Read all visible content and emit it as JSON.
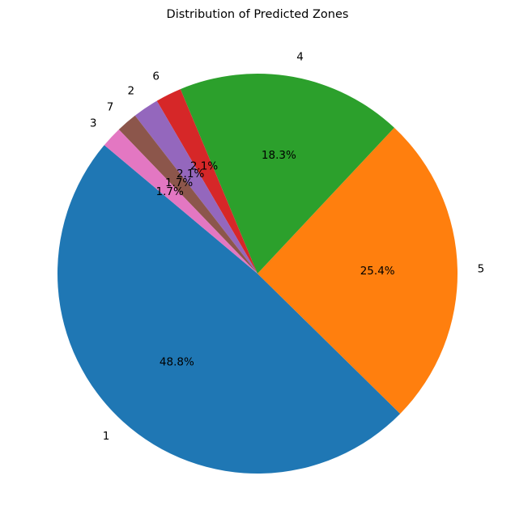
{
  "chart_data": {
    "type": "pie",
    "title": "Distribution of Predicted Zones",
    "labels": [
      "1",
      "5",
      "4",
      "6",
      "2",
      "7",
      "3"
    ],
    "values": [
      48.8,
      25.4,
      18.3,
      2.1,
      2.1,
      1.7,
      1.7
    ],
    "percent_labels": [
      "48.8%",
      "25.4%",
      "18.3%",
      "2.1%",
      "2.1%",
      "1.7%",
      "1.7%"
    ],
    "colors": [
      "#1f77b4",
      "#ff7f0e",
      "#2ca02c",
      "#d62728",
      "#9467bd",
      "#8c564b",
      "#e377c2"
    ],
    "start_angle_deg": 140,
    "direction": "counterclockwise",
    "legend": "none"
  }
}
